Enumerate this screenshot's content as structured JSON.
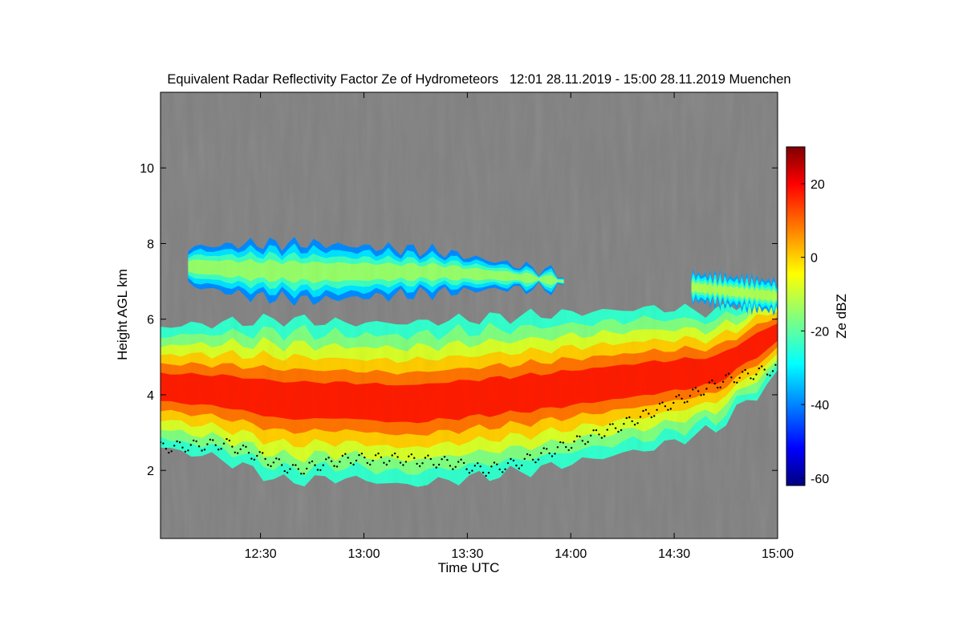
{
  "chart_data": {
    "type": "heatmap",
    "title": "Equivalent Radar Reflectivity Factor Ze of Hydrometeors   12:01 28.11.2019 - 15:00 28.11.2019 Muenchen",
    "xlabel": "Time UTC",
    "ylabel": "Height AGL km",
    "colorbar_label": "Ze dBZ",
    "xlim_minutes_after_noon": [
      1,
      180
    ],
    "x_tick_values_minutes_after_noon": [
      30,
      60,
      90,
      120,
      150,
      180
    ],
    "x_tick_labels": [
      "12:30",
      "13:00",
      "13:30",
      "14:00",
      "14:30",
      "15:00"
    ],
    "ylim": [
      0.2,
      12.0
    ],
    "y_ticks": [
      2,
      4,
      6,
      8,
      10
    ],
    "y_tick_labels": [
      "2",
      "4",
      "6",
      "8",
      "10"
    ],
    "clim": [
      -62,
      30
    ],
    "colorbar_ticks": [
      -60,
      -40,
      -20,
      0,
      20
    ],
    "colorbar_tick_labels": [
      "-60",
      "-40",
      "-20",
      "0",
      "20"
    ],
    "colormap": "jet",
    "background_color": "#808080",
    "grid": false,
    "cloud_layers": [
      {
        "name": "",
        "time_range": [
          1,
          180
        ],
        "base_km": [
          2.6,
          2.3,
          1.7,
          1.8,
          1.6,
          1.8,
          2.0,
          2.3,
          2.6,
          3.1,
          4.5
        ],
        "top_km": [
          5.8,
          5.9,
          6.0,
          5.9,
          5.9,
          6.0,
          6.1,
          6.2,
          6.3,
          6.2,
          6.8
        ],
        "max_ze_dbz": 12
      },
      {
        "name": "",
        "time_range": [
          9,
          118
        ],
        "base_km": [
          6.9,
          6.6,
          6.5,
          6.6,
          6.7,
          6.8,
          6.8
        ],
        "top_km": [
          7.9,
          8.0,
          8.0,
          7.9,
          7.8,
          7.5,
          7.2
        ],
        "max_ze_dbz": -12
      },
      {
        "name": "",
        "time_range": [
          155,
          180
        ],
        "base_km": [
          6.5,
          6.2
        ],
        "top_km": [
          7.2,
          7.0
        ],
        "max_ze_dbz": -10
      }
    ],
    "melting_layer_km": {
      "times_minutes_after_noon": [
        1,
        20,
        40,
        55,
        70,
        85,
        95,
        105,
        120,
        135,
        150,
        165,
        180
      ],
      "heights_km": [
        2.6,
        2.7,
        2.0,
        2.3,
        2.3,
        2.2,
        2.0,
        2.2,
        2.7,
        3.2,
        3.8,
        4.4,
        4.7
      ]
    }
  }
}
